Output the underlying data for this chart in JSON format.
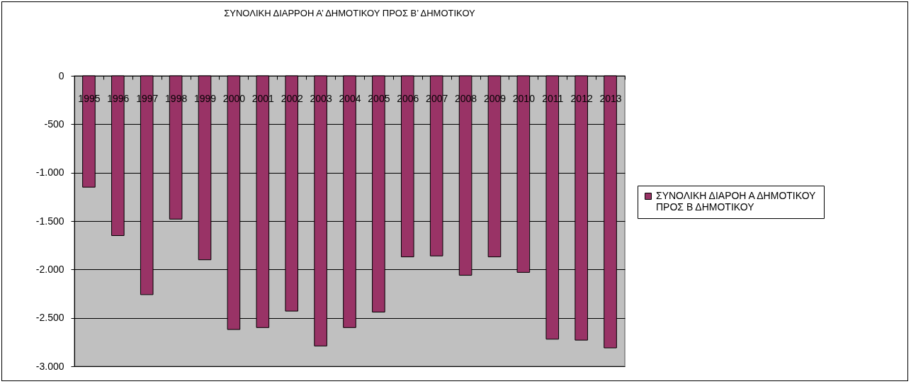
{
  "chart_data": {
    "type": "bar",
    "title": "ΣΥΝΟΛΙΚΗ ΔΙΑΡΡΟΗ Α’  ΔΗΜΟΤΙΚΟΥ ΠΡΟΣ Β’ ΔΗΜΟΤΙΚΟΥ",
    "categories": [
      "1995",
      "1996",
      "1997",
      "1998",
      "1999",
      "2000",
      "2001",
      "2002",
      "2003",
      "2004",
      "2005",
      "2006",
      "2007",
      "2008",
      "2009",
      "2010",
      "2011",
      "2012",
      "2013"
    ],
    "series": [
      {
        "name": "ΣΥΝΟΛΙΚΗ ΔΙΑΡΟΗ Α ΔΗΜΟΤΙΚΟΥ ΠΡΟΣ Β ΔΗΜΟΤΙΚΟΥ",
        "color": "#993366",
        "values": [
          -1150,
          -1650,
          -2260,
          -1480,
          -1900,
          -2620,
          -2600,
          -2430,
          -2790,
          -2600,
          -2440,
          -1870,
          -1860,
          -2060,
          -1870,
          -2030,
          -2720,
          -2730,
          -2810
        ]
      }
    ],
    "ylim": [
      -3000,
      0
    ],
    "yticks": [
      {
        "value": -3000,
        "label": "-3.000"
      },
      {
        "value": -2500,
        "label": "-2.500"
      },
      {
        "value": -2000,
        "label": "-2.000"
      },
      {
        "value": -1500,
        "label": "-1.500"
      },
      {
        "value": -1000,
        "label": "-1.000"
      },
      {
        "value": -500,
        "label": "-500"
      },
      0
    ],
    "grid": "y",
    "legend": "right"
  }
}
